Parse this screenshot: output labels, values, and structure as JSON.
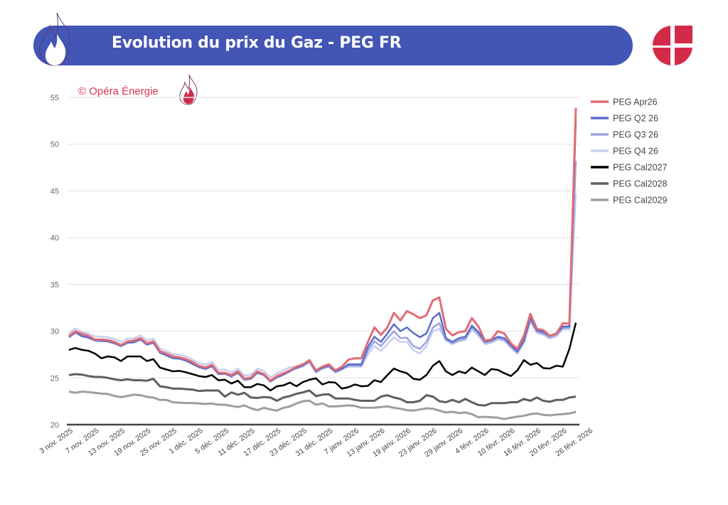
{
  "header": {
    "title": "Evolution du prix du Gaz - PEG FR",
    "banner_color": "#4355b5",
    "icon": "flame-icon",
    "logo": "opera-energie-logo",
    "logo_color": "#d42a4a"
  },
  "watermark": {
    "text": "© Opéra Énergie",
    "color": "#e0334f",
    "icon": "flame-icon"
  },
  "chart_data": {
    "type": "line",
    "title": "",
    "xlabel": "",
    "ylabel": "",
    "ylim": [
      20,
      55
    ],
    "yticks": [
      20,
      25,
      30,
      35,
      40,
      45,
      50,
      55
    ],
    "grid": true,
    "legend": "right",
    "x_tick_labels": [
      "3 nov. 2025",
      "7 nov. 2025",
      "13 nov. 2025",
      "19 nov. 2025",
      "25 nov. 2025",
      "1 déc. 2025",
      "5 déc. 2025",
      "11 déc. 2025",
      "17 déc. 2025",
      "23 déc. 2025",
      "31 déc. 2025",
      "7 janv. 2026",
      "13 janv. 2026",
      "19 janv. 2026",
      "23 janv. 2026",
      "29 janv. 2026",
      "4 févr. 2026",
      "10 févr. 2026",
      "16 févr. 2026",
      "20 févr. 2026",
      "26 févr. 2026"
    ],
    "series": [
      {
        "name": "PEG Apr26",
        "color": "#e06c75",
        "values": [
          29.5,
          30.0,
          29.7,
          29.5,
          29.1,
          29.1,
          29.05,
          28.85,
          28.5,
          28.9,
          29.0,
          29.25,
          28.7,
          28.9,
          27.85,
          27.6,
          27.3,
          27.2,
          27.0,
          26.7,
          26.3,
          26.1,
          26.4,
          25.55,
          25.55,
          25.3,
          25.7,
          24.9,
          25.05,
          25.7,
          25.4,
          24.7,
          25.2,
          25.5,
          25.8,
          26.2,
          26.45,
          26.9,
          25.8,
          26.2,
          26.45,
          25.8,
          26.2,
          26.95,
          27.1,
          27.1,
          28.85,
          30.4,
          29.6,
          30.4,
          31.95,
          31.15,
          32.15,
          31.8,
          31.4,
          31.7,
          33.3,
          33.6,
          30.25,
          29.55,
          29.9,
          30.0,
          31.4,
          30.5,
          29.0,
          29.1,
          30.0,
          29.75,
          28.7,
          28.1,
          29.5,
          31.85,
          30.25,
          30.1,
          29.5,
          29.75,
          30.85,
          30.8,
          53.9
        ]
      },
      {
        "name": "PEG Q2 26",
        "color": "#5b6ccc",
        "values": [
          29.35,
          29.85,
          29.45,
          29.3,
          29.0,
          28.95,
          28.9,
          28.7,
          28.4,
          28.75,
          28.8,
          29.1,
          28.55,
          28.75,
          27.7,
          27.4,
          27.1,
          27.05,
          26.85,
          26.5,
          26.15,
          25.95,
          26.25,
          25.4,
          25.45,
          25.15,
          25.55,
          24.8,
          24.9,
          25.55,
          25.3,
          24.6,
          25.05,
          25.35,
          25.7,
          26.1,
          26.35,
          26.8,
          25.7,
          26.1,
          26.3,
          25.7,
          26.0,
          26.45,
          26.45,
          26.45,
          28.3,
          29.4,
          28.85,
          29.75,
          30.75,
          30.0,
          30.4,
          29.8,
          29.35,
          29.75,
          31.4,
          31.95,
          29.25,
          28.85,
          29.25,
          29.4,
          30.6,
          29.9,
          28.9,
          29.05,
          29.4,
          29.25,
          28.5,
          27.85,
          29.0,
          31.45,
          30.1,
          29.9,
          29.5,
          29.75,
          30.5,
          30.5,
          52.6
        ]
      },
      {
        "name": "PEG Q3 26",
        "color": "#9aa5e0",
        "values": [
          29.45,
          29.95,
          29.55,
          29.4,
          29.1,
          29.05,
          29.0,
          28.8,
          28.5,
          28.85,
          28.9,
          29.2,
          28.65,
          28.85,
          27.8,
          27.5,
          27.2,
          27.15,
          26.95,
          26.6,
          26.25,
          26.05,
          26.35,
          25.5,
          25.55,
          25.25,
          25.65,
          24.9,
          25.0,
          25.65,
          25.4,
          24.7,
          25.15,
          25.45,
          25.8,
          26.0,
          26.25,
          26.7,
          25.6,
          26.0,
          26.2,
          25.6,
          25.9,
          26.3,
          26.3,
          26.3,
          27.9,
          28.9,
          28.4,
          29.2,
          30.0,
          29.25,
          29.3,
          28.4,
          28.1,
          28.85,
          30.4,
          30.85,
          29.1,
          28.7,
          29.05,
          29.2,
          30.4,
          29.7,
          28.75,
          28.9,
          29.25,
          29.1,
          28.35,
          27.7,
          28.85,
          31.2,
          29.95,
          29.75,
          29.35,
          29.6,
          30.35,
          30.35,
          48.2
        ]
      },
      {
        "name": "PEG Q4 26",
        "color": "#c9cef0",
        "values": [
          29.8,
          30.3,
          29.9,
          29.75,
          29.45,
          29.4,
          29.35,
          29.15,
          28.85,
          29.2,
          29.25,
          29.55,
          29.0,
          29.2,
          28.15,
          27.85,
          27.55,
          27.5,
          27.3,
          26.95,
          26.6,
          26.4,
          26.7,
          25.85,
          25.9,
          25.6,
          26.0,
          25.25,
          25.35,
          26.0,
          25.75,
          25.05,
          25.5,
          25.8,
          26.15,
          26.2,
          26.4,
          26.85,
          25.75,
          26.15,
          26.3,
          25.75,
          25.95,
          26.2,
          26.2,
          26.2,
          27.5,
          28.4,
          27.9,
          28.6,
          29.35,
          28.85,
          28.85,
          27.95,
          27.6,
          28.4,
          30.0,
          30.25,
          29.0,
          28.6,
          28.9,
          29.05,
          30.2,
          29.5,
          28.6,
          28.75,
          29.1,
          28.95,
          28.2,
          27.6,
          28.7,
          31.0,
          29.8,
          29.6,
          29.2,
          29.45,
          30.2,
          30.2,
          44.7
        ]
      },
      {
        "name": "PEG Cal2027",
        "color": "#000000",
        "values": [
          28.0,
          28.2,
          28.0,
          27.9,
          27.6,
          27.1,
          27.3,
          27.2,
          26.8,
          27.3,
          27.3,
          27.3,
          26.8,
          27.0,
          26.1,
          25.9,
          25.7,
          25.75,
          25.6,
          25.4,
          25.2,
          25.1,
          25.3,
          24.75,
          24.8,
          24.4,
          24.7,
          24.0,
          24.0,
          24.35,
          24.2,
          23.65,
          24.1,
          24.2,
          24.5,
          24.1,
          24.55,
          24.8,
          24.95,
          24.3,
          24.55,
          24.5,
          23.85,
          24.0,
          24.3,
          24.1,
          24.15,
          24.75,
          24.55,
          25.3,
          26.0,
          25.7,
          25.5,
          24.9,
          24.8,
          25.3,
          26.3,
          26.8,
          25.7,
          25.3,
          25.7,
          25.5,
          26.1,
          25.7,
          25.3,
          25.95,
          25.85,
          25.5,
          25.2,
          25.8,
          26.9,
          26.4,
          26.6,
          26.05,
          26.0,
          26.3,
          26.2,
          28.1,
          30.9
        ]
      },
      {
        "name": "PEG Cal2028",
        "color": "#5f5f5f",
        "values": [
          25.3,
          25.4,
          25.35,
          25.2,
          25.1,
          25.1,
          25.0,
          24.85,
          24.75,
          24.85,
          24.75,
          24.75,
          24.7,
          24.9,
          24.1,
          24.0,
          23.85,
          23.85,
          23.8,
          23.75,
          23.6,
          23.65,
          23.65,
          23.65,
          23.0,
          23.45,
          23.2,
          23.4,
          22.9,
          22.85,
          22.95,
          22.9,
          22.55,
          22.9,
          23.05,
          23.3,
          23.45,
          23.65,
          23.05,
          23.2,
          23.25,
          22.8,
          22.8,
          22.8,
          22.65,
          22.55,
          22.55,
          22.55,
          23.0,
          23.15,
          22.9,
          22.75,
          22.4,
          22.4,
          22.55,
          23.15,
          23.0,
          22.5,
          22.4,
          22.65,
          22.4,
          22.75,
          22.4,
          22.1,
          22.05,
          22.3,
          22.3,
          22.3,
          22.4,
          22.4,
          22.75,
          22.55,
          22.9,
          22.55,
          22.45,
          22.65,
          22.65,
          22.9,
          23.0
        ]
      },
      {
        "name": "PEG Cal2029",
        "color": "#9e9e9e",
        "values": [
          23.53,
          23.4,
          23.53,
          23.48,
          23.4,
          23.32,
          23.27,
          23.07,
          22.94,
          23.07,
          23.2,
          23.15,
          22.97,
          22.89,
          22.64,
          22.64,
          22.39,
          22.34,
          22.31,
          22.31,
          22.26,
          22.21,
          22.26,
          22.13,
          22.13,
          22.0,
          21.88,
          22.06,
          21.75,
          21.55,
          21.8,
          21.62,
          21.5,
          21.8,
          21.95,
          22.26,
          22.51,
          22.56,
          22.13,
          22.26,
          21.95,
          21.95,
          22.0,
          22.06,
          22.0,
          21.8,
          21.8,
          21.8,
          21.88,
          21.95,
          21.8,
          21.7,
          21.55,
          21.5,
          21.62,
          21.75,
          21.7,
          21.5,
          21.3,
          21.37,
          21.24,
          21.3,
          21.12,
          20.79,
          20.84,
          20.79,
          20.74,
          20.6,
          20.74,
          20.86,
          20.94,
          21.12,
          21.19,
          21.04,
          20.99,
          21.07,
          21.12,
          21.19,
          21.37
        ]
      }
    ]
  }
}
